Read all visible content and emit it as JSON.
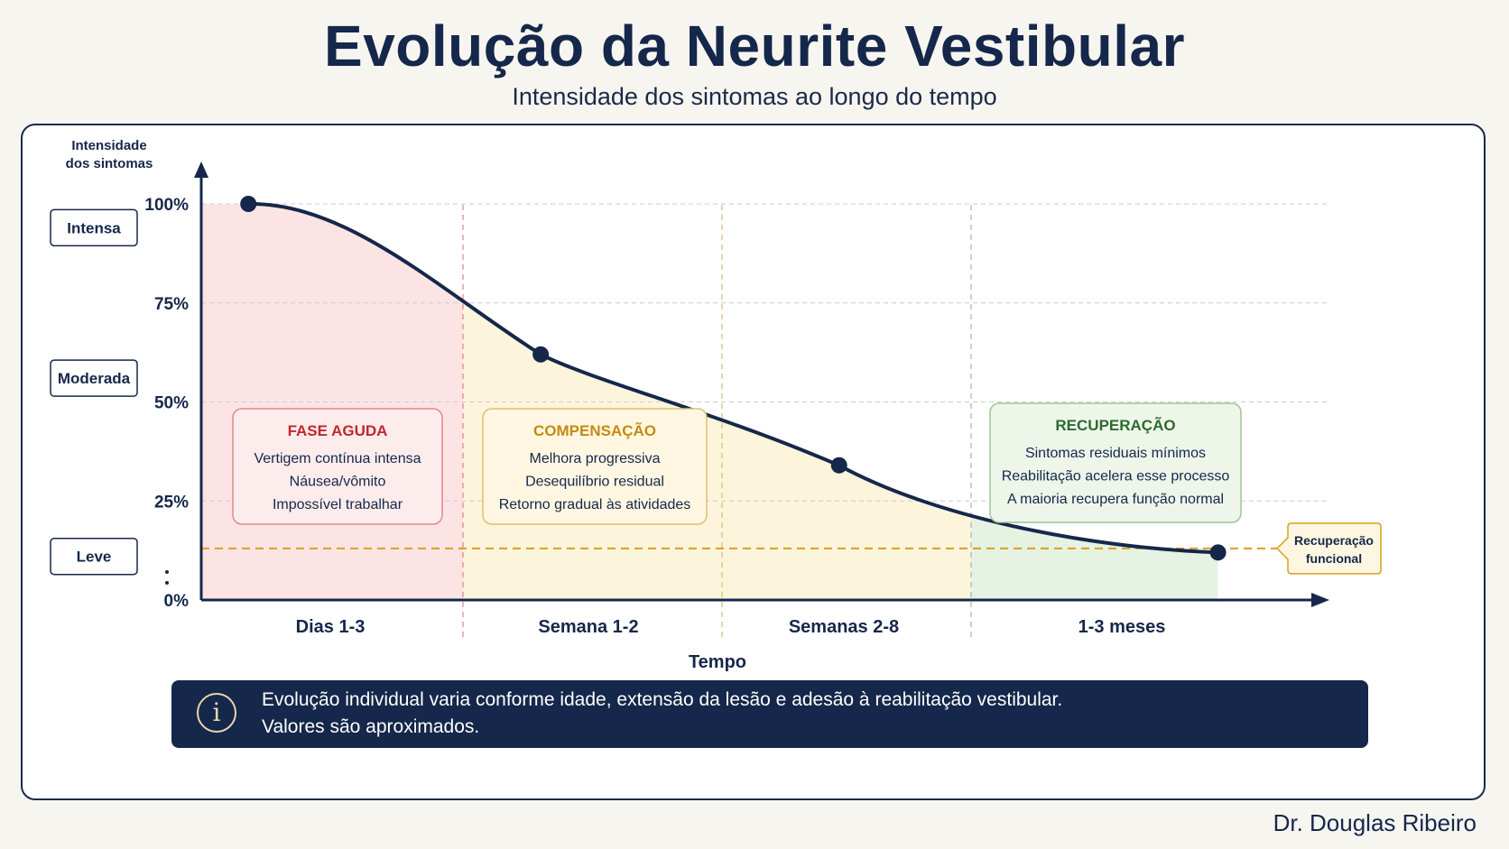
{
  "header": {
    "title": "Evolução da Neurite Vestibular",
    "subtitle": "Intensidade dos sintomas ao longo do tempo"
  },
  "chart_data": {
    "type": "line",
    "title": "Evolução da Neurite Vestibular",
    "subtitle": "Intensidade dos sintomas ao longo do tempo",
    "ylabel": "Intensidade dos sintomas",
    "xlabel": "Tempo",
    "ylim": [
      0,
      100
    ],
    "y_ticks": [
      "100%",
      "75%",
      "50%",
      "25%",
      "0%"
    ],
    "y_tick_values": [
      100,
      75,
      50,
      25,
      0
    ],
    "severity_labels": [
      {
        "label": "Intensa",
        "level": 94
      },
      {
        "label": "Moderada",
        "level": 56
      },
      {
        "label": "Leve",
        "level": 11
      }
    ],
    "categories": [
      "Dias 1-3",
      "Semana 1-2",
      "Semanas 2-8",
      "1-3 meses"
    ],
    "series": [
      {
        "values": [
          {
            "x": 0.18,
            "y": 100
          },
          {
            "x": 1.3,
            "y": 62
          },
          {
            "x": 2.47,
            "y": 34
          },
          {
            "x": 3.95,
            "y": 12
          }
        ]
      }
    ],
    "reference_line": {
      "label": "Recuperação funcional",
      "y": 13
    },
    "phases": [
      {
        "title": "FASE AGUDA",
        "color": "#c0282e",
        "items": [
          "Vertigem contínua intensa",
          "Náusea/vômito",
          "Impossível trabalhar"
        ]
      },
      {
        "title": "COMPENSAÇÃO",
        "color": "#c48a12",
        "items": [
          "Melhora progressiva",
          "Desequilíbrio residual",
          "Retorno gradual às atividades"
        ]
      },
      {
        "title": "RECUPERAÇÃO",
        "color": "#2c6b2f",
        "items": [
          "Sintomas residuais mínimos",
          "Reabilitação acelera esse processo",
          "A maioria recupera função normal"
        ]
      }
    ],
    "grid": true,
    "colors": {
      "line": "#15274a",
      "acute_fill": "#fde4e4",
      "compensation_fill": "#fdf4dc",
      "recovery_fill": "#e6f2e2",
      "reference": "#d9a01c"
    }
  },
  "note": {
    "icon": "info-icon",
    "line1": "Evolução individual varia conforme idade, extensão da lesão e adesão à reabilitação vestibular.",
    "line2": "Valores são aproximados."
  },
  "author": "Dr. Douglas Ribeiro"
}
